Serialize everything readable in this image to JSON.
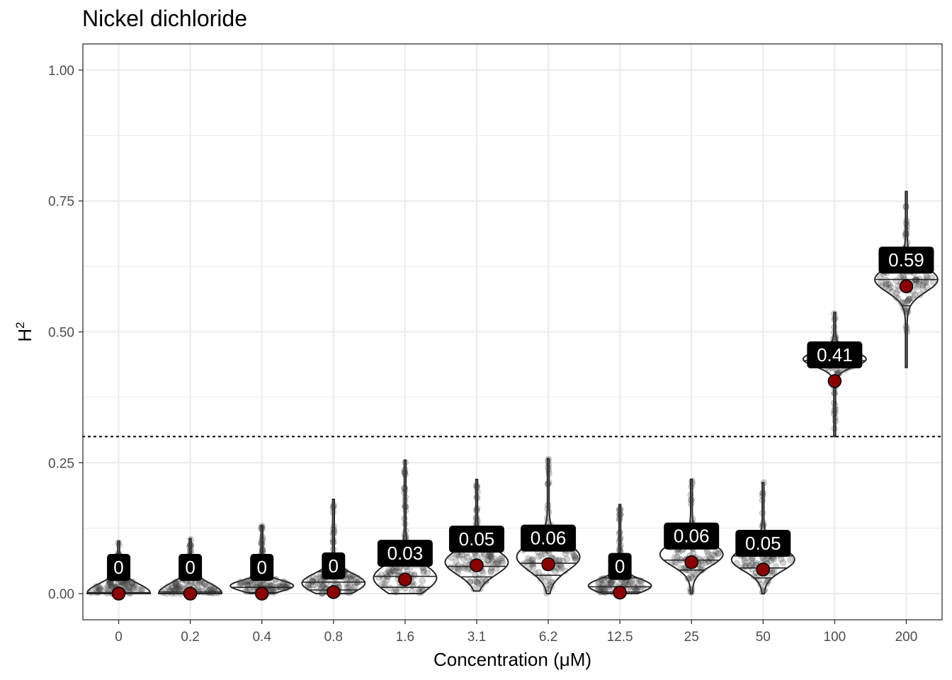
{
  "chart_data": {
    "type": "violin",
    "title": "Nickel dichloride",
    "xlabel": "Concentration (μM)",
    "ylabel": "H",
    "ylabel_superscript": "2",
    "ylim": [
      -0.05,
      1.05
    ],
    "yticks": [
      0.0,
      0.25,
      0.5,
      0.75,
      1.0
    ],
    "ytick_labels": [
      "0.00",
      "0.25",
      "0.50",
      "0.75",
      "1.00"
    ],
    "threshold": 0.3,
    "categories": [
      "0",
      "0.2",
      "0.4",
      "0.8",
      "1.6",
      "3.1",
      "6.2",
      "12.5",
      "25",
      "50",
      "100",
      "200"
    ],
    "groups": [
      {
        "mean": 0.0,
        "label": "0",
        "min": 0.0,
        "max": 0.1,
        "q1": 0.0,
        "median": 0.0,
        "q3": 0.002,
        "mode": 0.001,
        "spread": 0.18
      },
      {
        "mean": 0.0,
        "label": "0",
        "min": 0.0,
        "max": 0.105,
        "q1": 0.0,
        "median": 0.0,
        "q3": 0.003,
        "mode": 0.001,
        "spread": 0.18
      },
      {
        "mean": 0.0,
        "label": "0",
        "min": 0.0,
        "max": 0.13,
        "q1": 0.002,
        "median": 0.012,
        "q3": 0.03,
        "mode": 0.015,
        "spread": 0.08
      },
      {
        "mean": 0.003,
        "label": "0",
        "min": 0.0,
        "max": 0.18,
        "q1": 0.007,
        "median": 0.022,
        "q3": 0.042,
        "mode": 0.02,
        "spread": 0.1
      },
      {
        "mean": 0.027,
        "label": "0.03",
        "min": 0.0,
        "max": 0.255,
        "q1": 0.012,
        "median": 0.033,
        "q3": 0.06,
        "mode": 0.03,
        "spread": 0.1
      },
      {
        "mean": 0.054,
        "label": "0.05",
        "min": 0.005,
        "max": 0.218,
        "q1": 0.032,
        "median": 0.052,
        "q3": 0.08,
        "mode": 0.06,
        "spread": 0.11
      },
      {
        "mean": 0.056,
        "label": "0.06",
        "min": 0.0,
        "max": 0.258,
        "q1": 0.035,
        "median": 0.058,
        "q3": 0.085,
        "mode": 0.07,
        "spread": 0.1
      },
      {
        "mean": 0.002,
        "label": "0",
        "min": 0.0,
        "max": 0.17,
        "q1": 0.003,
        "median": 0.013,
        "q3": 0.03,
        "mode": 0.015,
        "spread": 0.08
      },
      {
        "mean": 0.06,
        "label": "0.06",
        "min": 0.0,
        "max": 0.218,
        "q1": 0.045,
        "median": 0.064,
        "q3": 0.09,
        "mode": 0.075,
        "spread": 0.1
      },
      {
        "mean": 0.046,
        "label": "0.05",
        "min": 0.0,
        "max": 0.212,
        "q1": 0.03,
        "median": 0.049,
        "q3": 0.072,
        "mode": 0.065,
        "spread": 0.1
      },
      {
        "mean": 0.406,
        "label": "0.41",
        "min": 0.3,
        "max": 0.537,
        "q1": 0.365,
        "median": 0.398,
        "q3": 0.445,
        "mode": 0.448,
        "spread": 0.06
      },
      {
        "mean": 0.587,
        "label": "0.59",
        "min": 0.432,
        "max": 0.768,
        "q1": 0.55,
        "median": 0.6,
        "q3": 0.65,
        "mode": 0.6,
        "spread": 0.07
      }
    ],
    "colors": {
      "mean_point": "#8b0000",
      "label_bg": "#000000",
      "label_text": "#ffffff",
      "violin_stroke": "#262626",
      "jitter_points": "#3a3a3a",
      "grid": "#ebebeb"
    }
  }
}
